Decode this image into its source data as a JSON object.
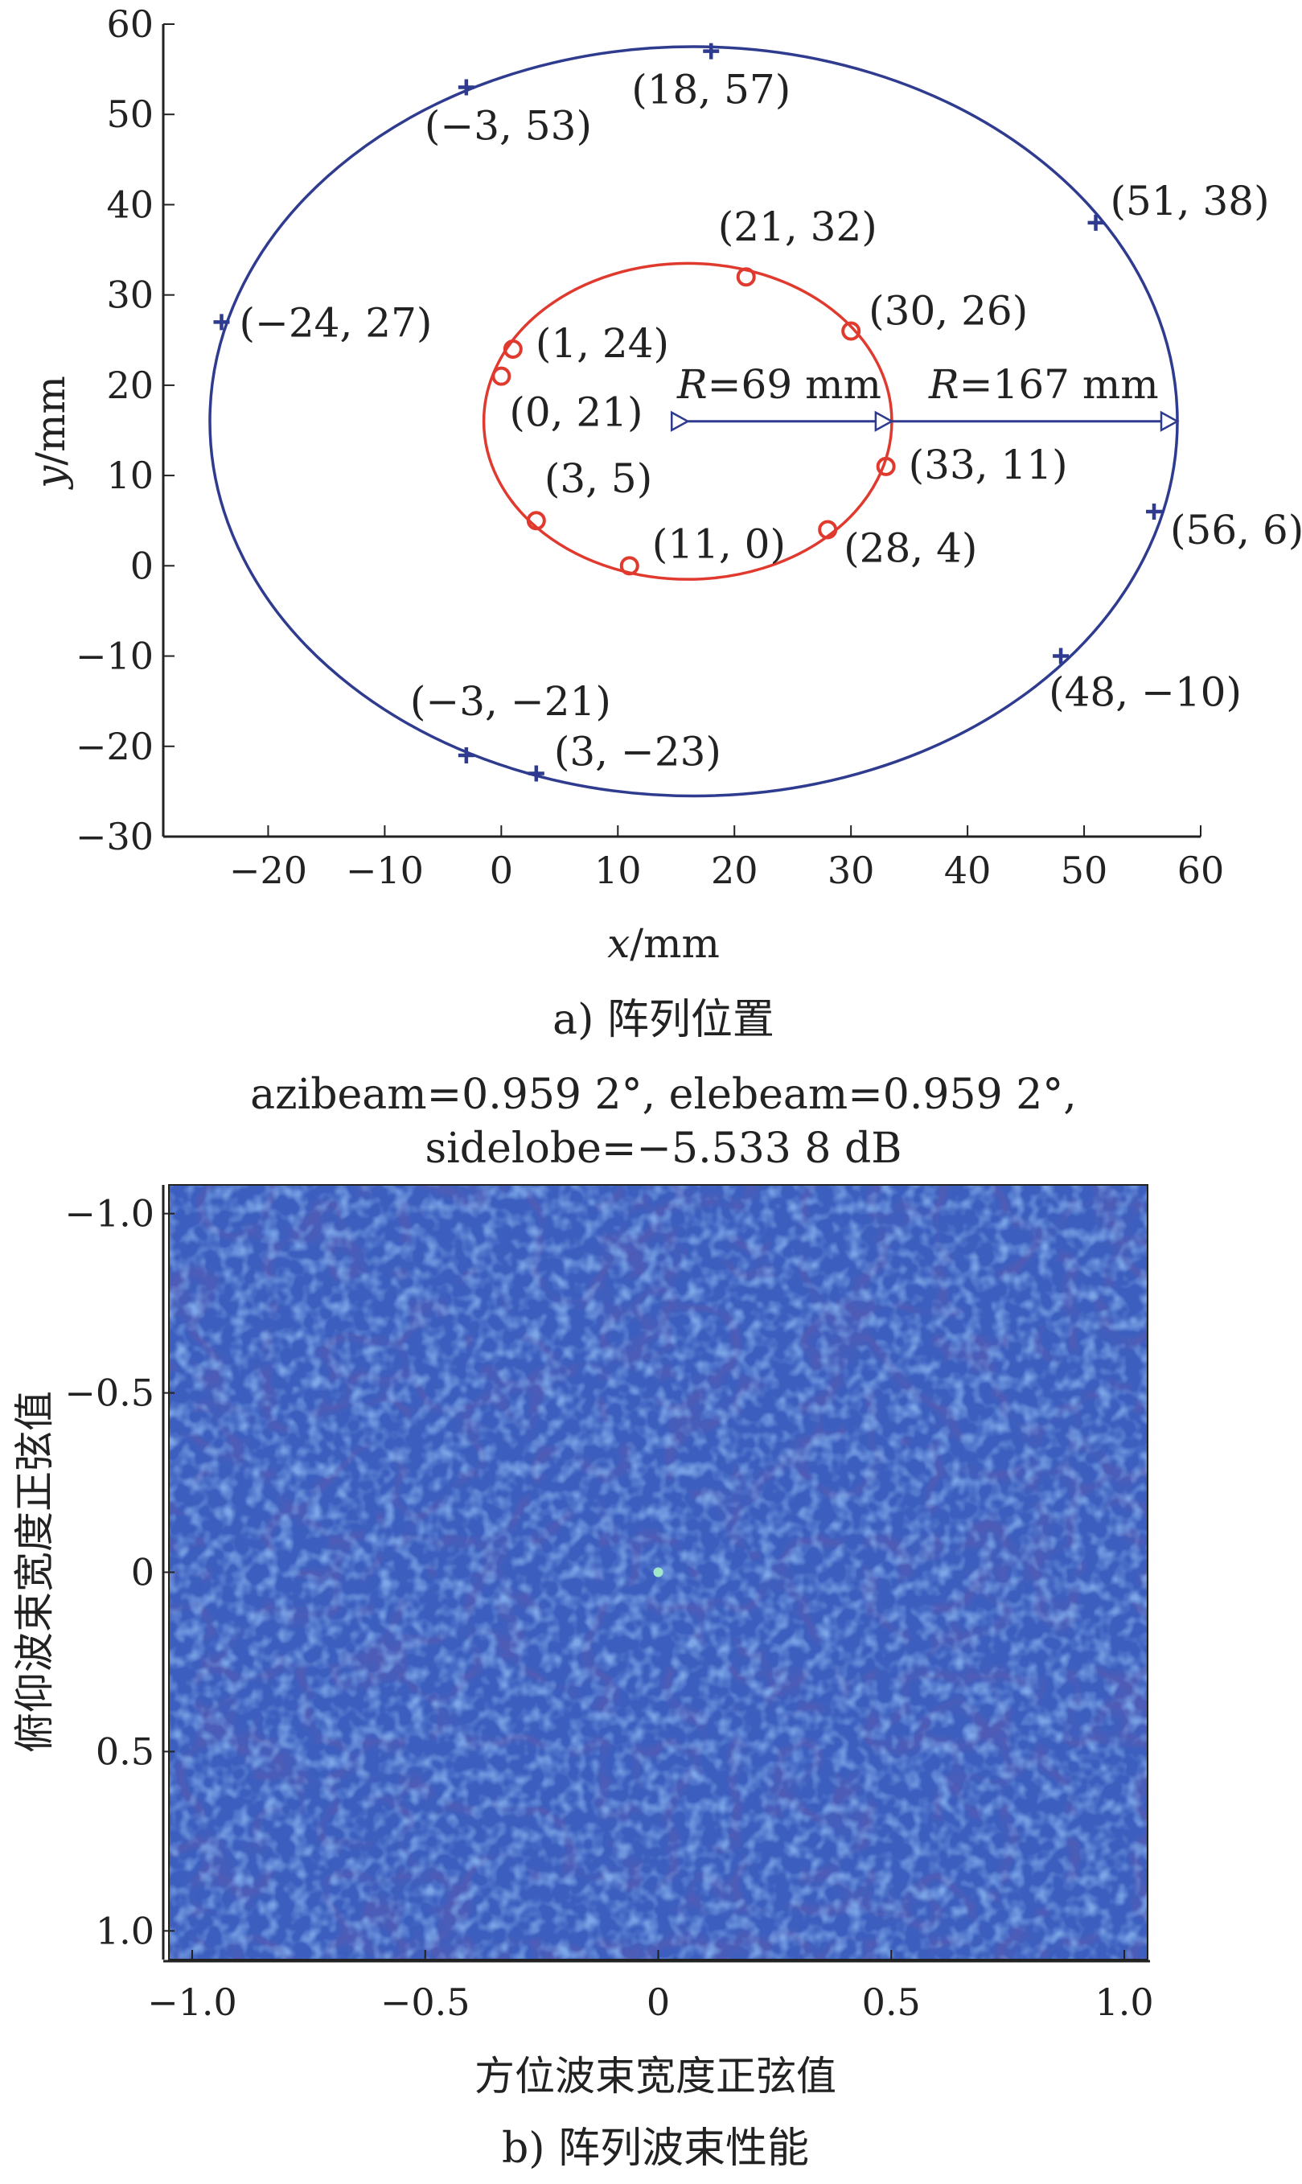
{
  "chart_data": [
    {
      "type": "scatter",
      "caption": "a) 阵列位置",
      "xlabel_var": "x",
      "ylabel_var": "y",
      "unit": "/mm",
      "xlim": [
        -29,
        60
      ],
      "ylim": [
        -30,
        60
      ],
      "xticks": [
        -20,
        -10,
        0,
        10,
        20,
        30,
        40,
        50,
        60
      ],
      "yticks": [
        -30,
        -20,
        -10,
        0,
        10,
        20,
        30,
        40,
        50,
        60
      ],
      "series": [
        {
          "marker": "circle",
          "color": "#e03a2f",
          "points": [
            {
              "x": 21,
              "y": 32,
              "label": "(21, 32)"
            },
            {
              "x": 30,
              "y": 26,
              "label": "(30, 26)"
            },
            {
              "x": 33,
              "y": 11,
              "label": "(33, 11)"
            },
            {
              "x": 28,
              "y": 4,
              "label": "(28, 4)"
            },
            {
              "x": 11,
              "y": 0,
              "label": "(11, 0)"
            },
            {
              "x": 3,
              "y": 5,
              "label": "(3, 5)"
            },
            {
              "x": 0,
              "y": 21,
              "label": "(0, 21)"
            },
            {
              "x": 1,
              "y": 24,
              "label": "(1, 24)"
            }
          ],
          "circle": {
            "cx": 16,
            "cy": 16,
            "r": 17.5
          }
        },
        {
          "marker": "plus",
          "color": "#2e3b8f",
          "points": [
            {
              "x": 18,
              "y": 57,
              "label": "(18, 57)"
            },
            {
              "x": -3,
              "y": 53,
              "label": "(−3, 53)"
            },
            {
              "x": 51,
              "y": 38,
              "label": "(51, 38)"
            },
            {
              "x": -24,
              "y": 27,
              "label": "(−24, 27)"
            },
            {
              "x": 56,
              "y": 6,
              "label": "(56, 6)"
            },
            {
              "x": 48,
              "y": -10,
              "label": "(48, −10)"
            },
            {
              "x": -3,
              "y": -21,
              "label": "(−3, −21)"
            },
            {
              "x": 3,
              "y": -23,
              "label": "(3, −23)"
            }
          ],
          "ellipse": {
            "cx": 16.5,
            "cy": 16,
            "rx": 41.5,
            "ry": 41.5
          }
        }
      ],
      "annotations": [
        {
          "var": "R",
          "text": "=69 mm"
        },
        {
          "var": "R",
          "text": "=167 mm"
        }
      ]
    },
    {
      "type": "heatmap",
      "caption": "b) 阵列波束性能",
      "title_line1": "azibeam=0.959 2°, elebeam=0.959 2°,",
      "title_line2": "sidelobe=−5.533 8 dB",
      "xlabel": "方位波束宽度正弦值",
      "ylabel": "俯仰波束宽度正弦值",
      "xlim": [
        -1.05,
        1.05
      ],
      "ylim": [
        -1.08,
        1.08
      ],
      "xtick_labels": [
        "−1.0",
        "−0.5",
        "0",
        "0.5",
        "1.0"
      ],
      "ytick_labels": [
        "−1.0",
        "−0.5",
        "0",
        "0.5",
        "1.0"
      ],
      "colors": {
        "low": "#2e2a7c",
        "mid": "#3c5fbf",
        "high": "#63b9d8",
        "peak": "#9fe8c8"
      }
    }
  ]
}
